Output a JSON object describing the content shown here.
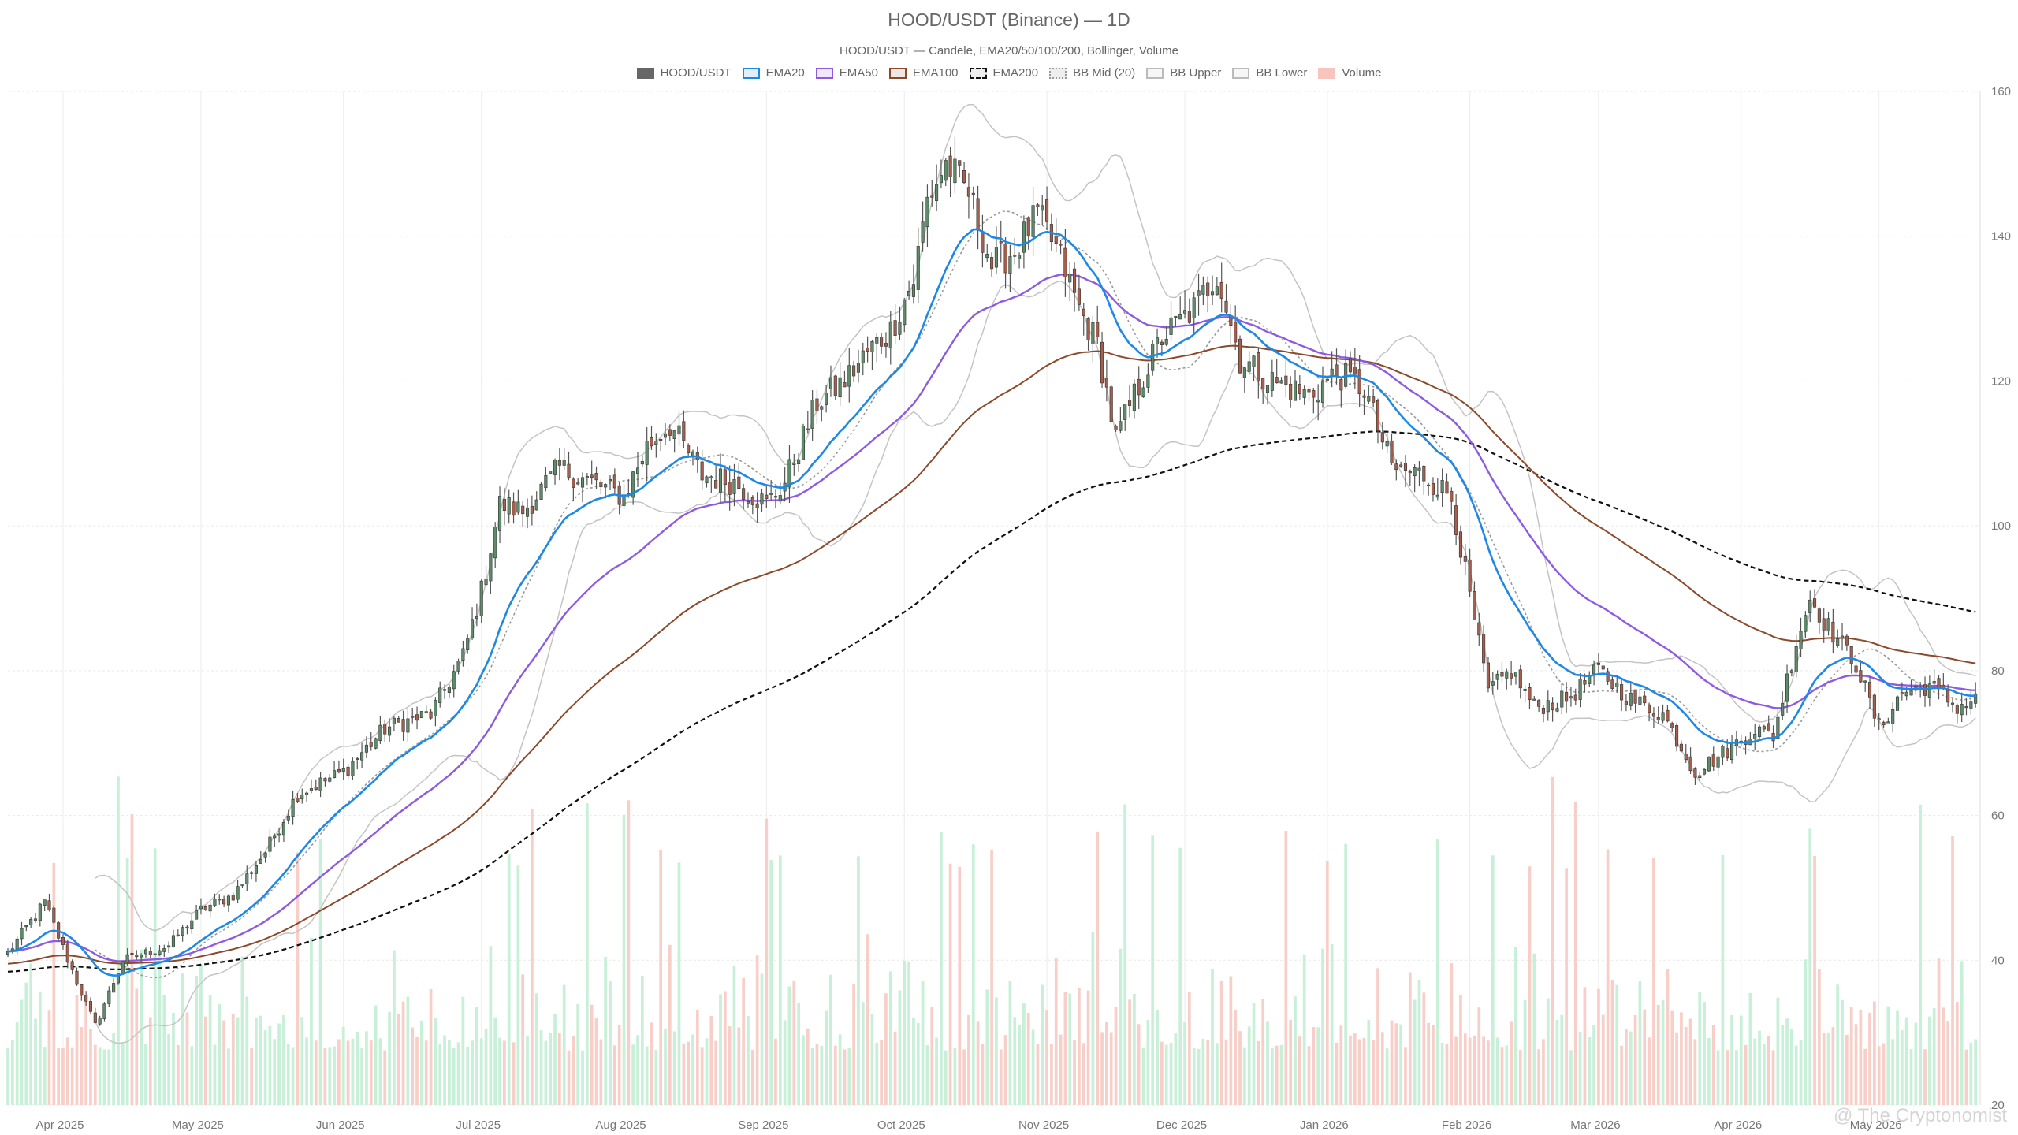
{
  "chart_data": {
    "type": "candlestick",
    "title": "HOOD/USDT (Binance) — 1D",
    "subtitle": "HOOD/USDT — Candele, EMA20/50/100/200, Bollinger, Volume",
    "watermark": "@ The Cryptonomist",
    "x_tick_labels": [
      "Apr 2025",
      "May 2025",
      "Jun 2025",
      "Jul 2025",
      "Aug 2025",
      "Sep 2025",
      "Oct 2025",
      "Nov 2025",
      "Dec 2025",
      "Jan 2026",
      "Feb 2026",
      "Mar 2026",
      "Apr 2026",
      "May 2026"
    ],
    "y_ticks": [
      20,
      40,
      60,
      80,
      100,
      120,
      140,
      160
    ],
    "ylim": [
      20,
      160
    ],
    "grid": true,
    "legend_position": "top-center",
    "legend": [
      {
        "label": "HOOD/USDT",
        "color": "#666666",
        "style": "solid-fill"
      },
      {
        "label": "EMA20",
        "color": "#1E88E5",
        "style": "line"
      },
      {
        "label": "EMA50",
        "color": "#8E5BE0",
        "style": "line"
      },
      {
        "label": "EMA100",
        "color": "#8B4A2B",
        "style": "line"
      },
      {
        "label": "EMA200",
        "color": "#111111",
        "style": "dashed"
      },
      {
        "label": "BB Mid (20)",
        "color": "#999999",
        "style": "dotted"
      },
      {
        "label": "BB Upper",
        "color": "#bbbbbb",
        "style": "line"
      },
      {
        "label": "BB Lower",
        "color": "#bbbbbb",
        "style": "line"
      },
      {
        "label": "Volume",
        "color": "#f7c5bd",
        "style": "solid-fill"
      }
    ],
    "colors": {
      "up": "#5e8c6a",
      "down": "#a5604d",
      "vol_up": "#c8efd8",
      "vol_down": "#f8cfc8",
      "ema20": "#1E88E5",
      "ema50": "#8E5BE0",
      "ema100": "#8B4A2B",
      "ema200": "#111111",
      "bb": "#c4c4c4",
      "bb_mid": "#999999"
    },
    "start_date": "2025-03-20",
    "close_anchors": [
      [
        "2025-03-20",
        41
      ],
      [
        "2025-03-28",
        48
      ],
      [
        "2025-04-04",
        37
      ],
      [
        "2025-04-08",
        31
      ],
      [
        "2025-04-14",
        40
      ],
      [
        "2025-04-24",
        42
      ],
      [
        "2025-05-01",
        47
      ],
      [
        "2025-05-08",
        49
      ],
      [
        "2025-05-15",
        55
      ],
      [
        "2025-05-22",
        63
      ],
      [
        "2025-06-01",
        66
      ],
      [
        "2025-06-10",
        72
      ],
      [
        "2025-06-20",
        74
      ],
      [
        "2025-06-27",
        82
      ],
      [
        "2025-07-01",
        91
      ],
      [
        "2025-07-05",
        103
      ],
      [
        "2025-07-10",
        102
      ],
      [
        "2025-07-18",
        108
      ],
      [
        "2025-07-25",
        106
      ],
      [
        "2025-08-01",
        104
      ],
      [
        "2025-08-06",
        111
      ],
      [
        "2025-08-11",
        114
      ],
      [
        "2025-08-18",
        107
      ],
      [
        "2025-08-25",
        106
      ],
      [
        "2025-09-01",
        103
      ],
      [
        "2025-09-05",
        106
      ],
      [
        "2025-09-12",
        117
      ],
      [
        "2025-09-18",
        120
      ],
      [
        "2025-09-23",
        124
      ],
      [
        "2025-09-28",
        127
      ],
      [
        "2025-10-03",
        134
      ],
      [
        "2025-10-06",
        145
      ],
      [
        "2025-10-10",
        150
      ],
      [
        "2025-10-15",
        146
      ],
      [
        "2025-10-20",
        136
      ],
      [
        "2025-10-25",
        138
      ],
      [
        "2025-10-30",
        143
      ],
      [
        "2025-11-04",
        137
      ],
      [
        "2025-11-08",
        130
      ],
      [
        "2025-11-12",
        125
      ],
      [
        "2025-11-16",
        112
      ],
      [
        "2025-11-20",
        118
      ],
      [
        "2025-11-26",
        126
      ],
      [
        "2025-12-03",
        130
      ],
      [
        "2025-12-08",
        135
      ],
      [
        "2025-12-13",
        123
      ],
      [
        "2025-12-20",
        120
      ],
      [
        "2025-12-28",
        118
      ],
      [
        "2026-01-03",
        121
      ],
      [
        "2026-01-09",
        119
      ],
      [
        "2026-01-15",
        108
      ],
      [
        "2026-01-22",
        107
      ],
      [
        "2026-01-28",
        104
      ],
      [
        "2026-02-01",
        90
      ],
      [
        "2026-02-05",
        77
      ],
      [
        "2026-02-10",
        80
      ],
      [
        "2026-02-15",
        75
      ],
      [
        "2026-02-22",
        76
      ],
      [
        "2026-03-01",
        80
      ],
      [
        "2026-03-08",
        76
      ],
      [
        "2026-03-15",
        74
      ],
      [
        "2026-03-22",
        66
      ],
      [
        "2026-03-29",
        69
      ],
      [
        "2026-04-04",
        72
      ],
      [
        "2026-04-08",
        71
      ],
      [
        "2026-04-13",
        84
      ],
      [
        "2026-04-16",
        90
      ],
      [
        "2026-04-20",
        86
      ],
      [
        "2026-04-26",
        81
      ],
      [
        "2026-05-01",
        72
      ],
      [
        "2026-05-06",
        77
      ],
      [
        "2026-05-12",
        78
      ],
      [
        "2026-05-18",
        75
      ],
      [
        "2026-05-22",
        76
      ]
    ],
    "volume_range": [
      5000000,
      75000000
    ]
  }
}
